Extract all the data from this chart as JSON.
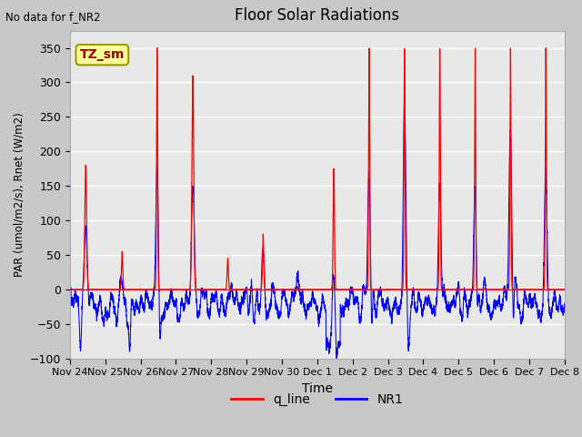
{
  "title": "Floor Solar Radiations",
  "top_left_text": "No data for f_NR2",
  "xlabel": "Time",
  "ylabel": "PAR (umol/m2/s), Rnet (W/m2)",
  "ylim": [
    -100,
    375
  ],
  "yticks": [
    -100,
    -50,
    0,
    50,
    100,
    150,
    200,
    250,
    300,
    350
  ],
  "xtick_labels": [
    "Nov 24",
    "Nov 25",
    "Nov 26",
    "Nov 27",
    "Nov 28",
    "Nov 29",
    "Nov 30",
    "Dec 1",
    "Dec 2",
    "Dec 3",
    "Dec 4",
    "Dec 5",
    "Dec 6",
    "Dec 7",
    "Dec 8"
  ],
  "legend_labels": [
    "q_line",
    "NR1"
  ],
  "legend_colors": [
    "red",
    "blue"
  ],
  "annotation_text": "TZ_sm",
  "annotation_box_color": "#ffff99",
  "annotation_box_edgecolor": "#999900",
  "fig_bg_color": "#c8c8c8",
  "plot_bg_color": "#e8e8e8",
  "grid_color": "white",
  "q_peak_heights": [
    180,
    55,
    350,
    310,
    45,
    80,
    5,
    175,
    350,
    350,
    350,
    350,
    350,
    350
  ],
  "q_peak_centers": [
    0.45,
    0.48,
    0.47,
    0.48,
    0.47,
    0.47,
    0.47,
    0.47,
    0.47,
    0.47,
    0.47,
    0.47,
    0.47,
    0.47
  ],
  "q_peak_widths": [
    0.025,
    0.018,
    0.015,
    0.025,
    0.018,
    0.018,
    0.018,
    0.018,
    0.015,
    0.015,
    0.015,
    0.015,
    0.015,
    0.015
  ],
  "nr1_peak_heights": [
    90,
    28,
    220,
    175,
    20,
    65,
    50,
    65,
    195,
    280,
    175,
    175,
    245,
    175
  ],
  "nr1_peak_widths": [
    0.045,
    0.03,
    0.035,
    0.04,
    0.03,
    0.04,
    0.04,
    0.04,
    0.035,
    0.035,
    0.035,
    0.035,
    0.04,
    0.035
  ],
  "n_points": 5000,
  "seed": 42
}
